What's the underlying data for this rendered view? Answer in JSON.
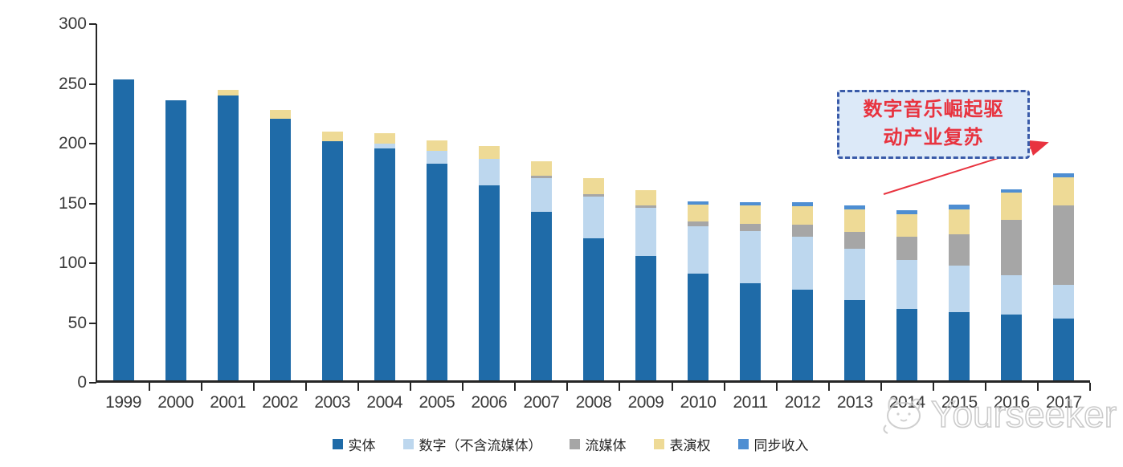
{
  "chart_data": {
    "type": "bar",
    "stacked": true,
    "title": "",
    "categories": [
      "1999",
      "2000",
      "2001",
      "2002",
      "2003",
      "2004",
      "2005",
      "2006",
      "2007",
      "2008",
      "2009",
      "2010",
      "2011",
      "2012",
      "2013",
      "2014",
      "2015",
      "2016",
      "2017"
    ],
    "series": [
      {
        "name": "实体",
        "color": "#1f6ba8",
        "values": [
          252,
          234,
          238,
          219,
          200,
          194,
          181,
          163,
          141,
          119,
          104,
          89,
          81,
          76,
          67,
          60,
          57,
          55,
          52
        ]
      },
      {
        "name": "数字（不含流媒体）",
        "color": "#bdd7ee",
        "values": [
          0,
          0,
          0,
          0,
          0,
          4,
          11,
          22,
          28,
          35,
          40,
          40,
          44,
          44,
          43,
          41,
          39,
          33,
          28
        ]
      },
      {
        "name": "流媒体",
        "color": "#a6a6a6",
        "values": [
          0,
          0,
          0,
          0,
          0,
          0,
          0,
          0,
          2,
          2,
          2,
          4,
          6,
          10,
          14,
          19,
          26,
          46,
          66
        ]
      },
      {
        "name": "表演权",
        "color": "#eeda96",
        "values": [
          0,
          0,
          5,
          7,
          8,
          9,
          9,
          11,
          12,
          13,
          13,
          14,
          15,
          16,
          19,
          19,
          21,
          23,
          24
        ]
      },
      {
        "name": "同步收入",
        "color": "#4e8ed2",
        "values": [
          0,
          0,
          0,
          0,
          0,
          0,
          0,
          0,
          0,
          0,
          0,
          3,
          3,
          3,
          3,
          3,
          4,
          3,
          3
        ]
      }
    ],
    "ylim": [
      0,
      300
    ],
    "yticks": [
      0,
      50,
      100,
      150,
      200,
      250,
      300
    ],
    "legend_position": "bottom",
    "grid": false
  },
  "annotation": {
    "line1": "数字音乐崛起驱",
    "line2": "动产业复苏",
    "text_color": "#e8333f",
    "border_color": "#3a5ba9",
    "fill_color": "#dce9f8",
    "arrow_color": "#e8333f"
  },
  "watermark": {
    "text": "Yourseeker"
  }
}
